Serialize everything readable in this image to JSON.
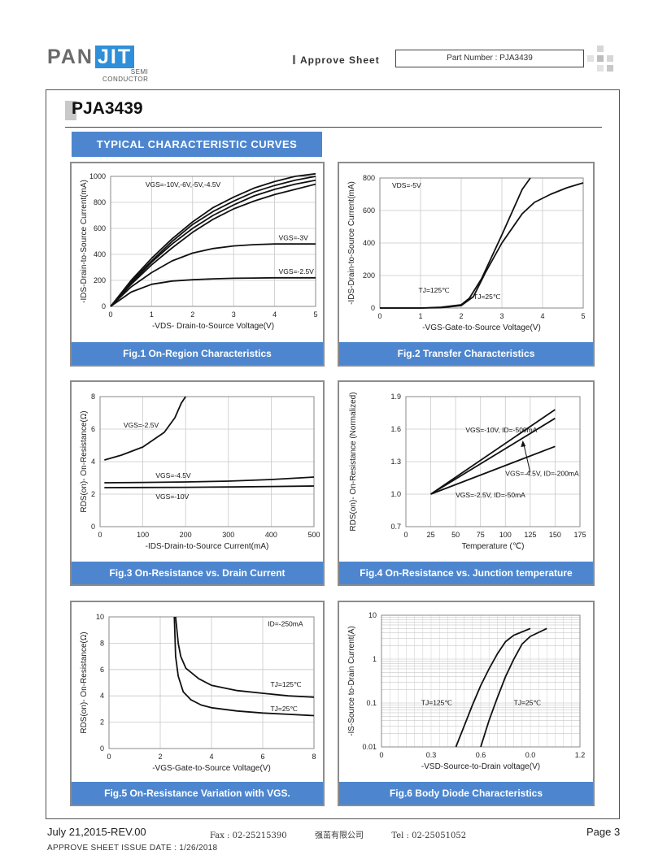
{
  "header": {
    "logo_pan": "PAN",
    "logo_jit": "JIT",
    "logo_sub1": "SEMI",
    "logo_sub2": "CONDUCTOR",
    "approve_sheet": "Approve Sheet",
    "part_number": "Part Number : PJA3439"
  },
  "part_title": "PJA3439",
  "section": "TYPICAL CHARACTERISTIC CURVES",
  "footer": {
    "date_rev": "July 21,2015-REV.00",
    "fax": "Fax : 02-25215390",
    "company": "强茁有限公司",
    "tel": "Tel : 02-25051052",
    "page": "Page 3",
    "issue": "APPROVE SHEET ISSUE DATE : 1/26/2018"
  },
  "chart_data": [
    {
      "type": "line",
      "caption": "Fig.1 On-Region Characteristics",
      "xlabel": "-VDS- Drain-to-Source Voltage(V)",
      "ylabel": "-IDS-Drain-to-Source Current(mA)",
      "xlim": [
        0,
        5
      ],
      "ylim": [
        0,
        1000
      ],
      "xticks": [
        "0",
        "1",
        "2",
        "3",
        "4",
        "5"
      ],
      "yticks": [
        "0",
        "200",
        "400",
        "600",
        "800",
        "1000"
      ],
      "grid": true,
      "series": [
        {
          "name": "VGS=-10V,-6V,-5V,-4.5V",
          "x": [
            0,
            0.5,
            1,
            1.5,
            2,
            2.5,
            3,
            3.5,
            4,
            4.5,
            5
          ],
          "y": [
            0,
            200,
            370,
            520,
            650,
            760,
            840,
            910,
            960,
            1000,
            1020
          ]
        },
        {
          "x": [
            0,
            0.5,
            1,
            1.5,
            2,
            2.5,
            3,
            3.5,
            4,
            4.5,
            5
          ],
          "y": [
            0,
            190,
            350,
            500,
            630,
            730,
            810,
            880,
            930,
            970,
            1000
          ]
        },
        {
          "x": [
            0,
            0.5,
            1,
            1.5,
            2,
            2.5,
            3,
            3.5,
            4,
            4.5,
            5
          ],
          "y": [
            0,
            180,
            340,
            480,
            600,
            700,
            780,
            850,
            900,
            940,
            970
          ]
        },
        {
          "x": [
            0,
            0.5,
            1,
            1.5,
            2,
            2.5,
            3,
            3.5,
            4,
            4.5,
            5
          ],
          "y": [
            0,
            170,
            320,
            450,
            570,
            670,
            750,
            810,
            860,
            900,
            940
          ]
        },
        {
          "name": "VGS=-3V",
          "x": [
            0,
            0.5,
            1,
            1.5,
            2,
            2.5,
            3,
            3.5,
            4,
            4.5,
            5
          ],
          "y": [
            0,
            150,
            260,
            350,
            410,
            445,
            465,
            475,
            480,
            480,
            480
          ]
        },
        {
          "name": "VGS=-2.5V",
          "x": [
            0,
            0.5,
            1,
            1.5,
            2,
            2.5,
            3,
            3.5,
            4,
            4.5,
            5
          ],
          "y": [
            0,
            110,
            170,
            195,
            205,
            212,
            216,
            218,
            220,
            220,
            220
          ]
        }
      ]
    },
    {
      "type": "line",
      "caption": "Fig.2 Transfer Characteristics",
      "xlabel": "-VGS-Gate-to-Source Voltage(V)",
      "ylabel": "-IDS-Drain-to-Source Current(mA)",
      "xlim": [
        0,
        5
      ],
      "ylim": [
        0,
        800
      ],
      "xticks": [
        "0",
        "1",
        "2",
        "3",
        "4",
        "5"
      ],
      "yticks": [
        "0",
        "200",
        "400",
        "600",
        "800"
      ],
      "grid": true,
      "annotation": "VDS=-5V",
      "series": [
        {
          "name": "TJ=125℃",
          "x": [
            0,
            1,
            1.5,
            2,
            2.2,
            2.5,
            3,
            3.5,
            3.7
          ],
          "y": [
            0,
            0,
            5,
            20,
            60,
            180,
            450,
            730,
            800
          ]
        },
        {
          "name": "TJ=25℃",
          "x": [
            0,
            1,
            1.5,
            2,
            2.3,
            2.6,
            3,
            3.5,
            3.8,
            4.2,
            4.6,
            5
          ],
          "y": [
            0,
            0,
            2,
            15,
            70,
            220,
            400,
            580,
            650,
            700,
            740,
            770
          ]
        }
      ]
    },
    {
      "type": "line",
      "caption": "Fig.3 On-Resistance vs. Drain Current",
      "xlabel": "-IDS-Drain-to-Source Current(mA)",
      "ylabel": "RDS(on)- On-Resistance(Ω)",
      "xlim": [
        0,
        500
      ],
      "ylim": [
        0,
        8
      ],
      "xticks": [
        "0",
        "100",
        "200",
        "300",
        "400",
        "500"
      ],
      "yticks": [
        "0",
        "2",
        "4",
        "6",
        "8"
      ],
      "grid": true,
      "series": [
        {
          "name": "VGS=-2.5V",
          "x": [
            10,
            50,
            100,
            150,
            175,
            190,
            200
          ],
          "y": [
            4.1,
            4.4,
            4.9,
            5.8,
            6.7,
            7.6,
            8.0
          ]
        },
        {
          "name": "VGS=-4.5V",
          "x": [
            10,
            100,
            200,
            300,
            400,
            500
          ],
          "y": [
            2.7,
            2.72,
            2.75,
            2.8,
            2.9,
            3.05
          ]
        },
        {
          "name": "VGS=-10V",
          "x": [
            10,
            100,
            200,
            300,
            400,
            500
          ],
          "y": [
            2.4,
            2.41,
            2.42,
            2.44,
            2.47,
            2.5
          ]
        }
      ]
    },
    {
      "type": "line",
      "caption": "Fig.4 On-Resistance vs. Junction temperature",
      "xlabel": "Temperature (℃)",
      "ylabel": "RDS(on)- On-Resistance (Normalized)",
      "xlim": [
        0,
        175
      ],
      "ylim": [
        0.7,
        1.9
      ],
      "xticks": [
        "0",
        "25",
        "50",
        "75",
        "100",
        "125",
        "150",
        "175"
      ],
      "yticks": [
        "0.7",
        "1.0",
        "1.3",
        "1.6",
        "1.9"
      ],
      "grid": true,
      "series": [
        {
          "name": "VGS=-10V, ID=-500mA",
          "x": [
            25,
            150
          ],
          "y": [
            1.0,
            1.78
          ]
        },
        {
          "name": "VGS=-4.5V, ID=-200mA",
          "x": [
            25,
            150
          ],
          "y": [
            1.0,
            1.7
          ]
        },
        {
          "name": "VGS=-2.5V, ID=-50mA",
          "x": [
            25,
            150
          ],
          "y": [
            1.0,
            1.44
          ]
        }
      ]
    },
    {
      "type": "line",
      "caption": "Fig.5 On-Resistance Variation with VGS.",
      "xlabel": "-VGS-Gate-to-Source Voltage(V)",
      "ylabel": "RDS(on)- On-Resistance(Ω)",
      "xlim": [
        0,
        8
      ],
      "ylim": [
        0,
        10
      ],
      "xticks": [
        "0",
        "2",
        "4",
        "6",
        "8"
      ],
      "yticks": [
        "0",
        "2",
        "4",
        "6",
        "8",
        "10"
      ],
      "grid": true,
      "annotation": "ID=-250mA",
      "series": [
        {
          "name": "TJ=125℃",
          "x": [
            2.6,
            2.7,
            2.8,
            3,
            3.5,
            4,
            5,
            6,
            7,
            8
          ],
          "y": [
            10,
            8,
            7,
            6.1,
            5.3,
            4.8,
            4.4,
            4.2,
            4.0,
            3.9
          ]
        },
        {
          "name": "TJ=25℃",
          "x": [
            2.55,
            2.6,
            2.7,
            2.9,
            3.2,
            3.6,
            4,
            5,
            6,
            7,
            8
          ],
          "y": [
            10,
            7,
            5.5,
            4.3,
            3.7,
            3.3,
            3.1,
            2.85,
            2.7,
            2.6,
            2.5
          ]
        }
      ]
    },
    {
      "type": "line",
      "caption": "Fig.6 Body Diode Characteristics",
      "xlabel": "-VSD-Source-to-Drain voltage(V)",
      "ylabel": "-IS-Source to-Drain Current(A)",
      "xlim": [
        0,
        1.2
      ],
      "ylim": [
        0.01,
        10
      ],
      "yscale": "log",
      "xticks": [
        "0",
        "0.3",
        "0.6",
        "0.9",
        "1.2"
      ],
      "xtick_labels_shown": [
        "0",
        "0.3",
        "0.6",
        "0.0",
        "1.2"
      ],
      "yticks": [
        "0.01",
        "0.1",
        "1",
        "10"
      ],
      "grid": true,
      "series": [
        {
          "name": "TJ=125℃",
          "x": [
            0.45,
            0.5,
            0.55,
            0.6,
            0.65,
            0.7,
            0.75,
            0.8,
            0.9
          ],
          "y": [
            0.01,
            0.03,
            0.09,
            0.25,
            0.6,
            1.3,
            2.5,
            3.5,
            5.0
          ]
        },
        {
          "name": "TJ=25℃",
          "x": [
            0.6,
            0.65,
            0.7,
            0.75,
            0.8,
            0.85,
            0.9,
            1.0
          ],
          "y": [
            0.01,
            0.04,
            0.13,
            0.4,
            1.0,
            2.2,
            3.3,
            5.0
          ]
        }
      ]
    }
  ]
}
